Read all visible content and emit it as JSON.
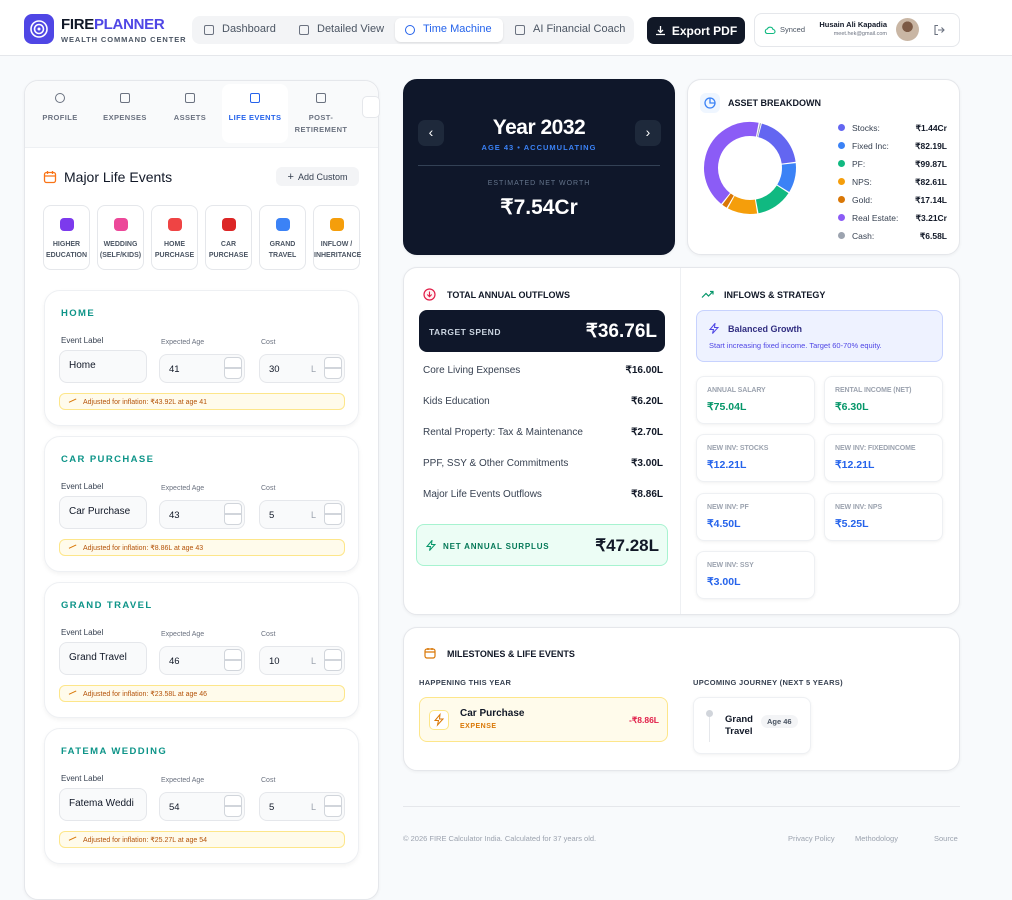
{
  "header": {
    "brand_first": "FIRE",
    "brand_second": "PLANNER",
    "tagline": "WEALTH COMMAND CENTER",
    "nav": [
      "Dashboard",
      "Detailed View",
      "Time Machine",
      "AI Financial Coach"
    ],
    "export": "Export PDF",
    "sync_status": "Synced",
    "user_name": "Husain Ali Kapadia",
    "user_email": "meet.hek@gmail.com"
  },
  "sidebar": {
    "tabs": [
      "PROFILE",
      "EXPENSES",
      "ASSETS",
      "LIFE EVENTS",
      "POST-RETIREMENT"
    ],
    "title": "Major Life Events",
    "add_button": "Add Custom",
    "presets": [
      "HIGHER EDUCATION",
      "WEDDING (SELF/KIDS)",
      "HOME PURCHASE",
      "CAR PURCHASE",
      "GRAND TRAVEL",
      "INFLOW / INHERITANCE"
    ],
    "field_labels": {
      "event_label": "Event Label",
      "age": "Expected Age",
      "cost": "Cost",
      "unit": "L"
    },
    "events": [
      {
        "title": "HOME",
        "label": "Home",
        "age": 41,
        "cost": 30,
        "note": "Adjusted for inflation: ₹43.92L at age 41"
      },
      {
        "title": "CAR PURCHASE",
        "label": "Car Purchase",
        "age": 43,
        "cost": 5,
        "note": "Adjusted for inflation: ₹8.86L at age 43"
      },
      {
        "title": "GRAND TRAVEL",
        "label": "Grand Travel",
        "age": 46,
        "cost": 10,
        "note": "Adjusted for inflation: ₹23.58L at age 46"
      },
      {
        "title": "FATEMA WEDDING",
        "label": "Fatema Weddi",
        "age": 54,
        "cost": 5,
        "note": "Adjusted for inflation: ₹25.27L at age 54"
      }
    ]
  },
  "time_machine": {
    "year": "Year 2032",
    "status": "AGE 43 • ACCUMULATING",
    "net_worth_label": "ESTIMATED NET WORTH",
    "net_worth": "₹7.54Cr"
  },
  "asset_breakdown": {
    "type": "pie",
    "title": "ASSET BREAKDOWN",
    "categories": [
      "Stocks:",
      "Fixed Inc:",
      "PF:",
      "NPS:",
      "Gold:",
      "Real Estate:",
      "Cash:"
    ],
    "values": [
      144,
      82.19,
      99.87,
      82.61,
      17.14,
      321,
      6.58
    ],
    "value_labels": [
      "₹1.44Cr",
      "₹82.19L",
      "₹99.87L",
      "₹82.61L",
      "₹17.14L",
      "₹3.21Cr",
      "₹6.58L"
    ],
    "colors": [
      "#6366f1",
      "#3b82f6",
      "#10b981",
      "#f59e0b",
      "#d97706",
      "#8b5cf6",
      "#9ca3af"
    ]
  },
  "outflows": {
    "title": "TOTAL ANNUAL OUTFLOWS",
    "target_label": "TARGET SPEND",
    "target_value": "₹36.76L",
    "rows": [
      {
        "label": "Core Living Expenses",
        "value": "₹16.00L"
      },
      {
        "label": "Kids Education",
        "value": "₹6.20L"
      },
      {
        "label": "Rental Property: Tax & Maintenance",
        "value": "₹2.70L"
      },
      {
        "label": "PPF, SSY & Other Commitments",
        "value": "₹3.00L"
      },
      {
        "label": "Major Life Events Outflows",
        "value": "₹8.86L"
      }
    ],
    "surplus_label": "NET ANNUAL SURPLUS",
    "surplus_value": "₹47.28L"
  },
  "inflows": {
    "title": "INFLOWS & STRATEGY",
    "strategy_title": "Balanced Growth",
    "strategy_text": "Start increasing fixed income. Target 60-70% equity.",
    "tiles": [
      {
        "label": "ANNUAL SALARY",
        "value": "₹75.04L"
      },
      {
        "label": "RENTAL INCOME (NET)",
        "value": "₹6.30L"
      },
      {
        "label": "NEW INV: STOCKS",
        "value": "₹12.21L"
      },
      {
        "label": "NEW INV: FIXEDINCOME",
        "value": "₹12.21L"
      },
      {
        "label": "NEW INV: PF",
        "value": "₹4.50L"
      },
      {
        "label": "NEW INV: NPS",
        "value": "₹5.25L"
      },
      {
        "label": "NEW INV: SSY",
        "value": "₹3.00L"
      }
    ]
  },
  "milestones": {
    "title": "MILESTONES & LIFE EVENTS",
    "this_year_title": "HAPPENING THIS YEAR",
    "this_year_event": "Car Purchase",
    "this_year_kind": "EXPENSE",
    "this_year_amount": "-₹8.86L",
    "upcoming_title": "UPCOMING JOURNEY (NEXT 5 YEARS)",
    "upcoming_event": "Grand Travel",
    "upcoming_age": "Age 46"
  },
  "footer": {
    "copyright": "© 2026 FIRE Calculator India. Calculated for 37 years old.",
    "links": [
      "Privacy Policy",
      "Methodology",
      "Source"
    ]
  }
}
